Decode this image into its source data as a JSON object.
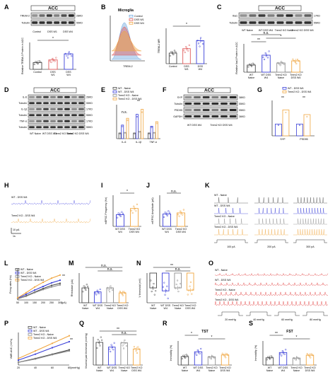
{
  "panels": [
    "A",
    "B",
    "C",
    "D",
    "E",
    "F",
    "G",
    "H",
    "I",
    "J",
    "K",
    "L",
    "M",
    "N",
    "O",
    "P",
    "Q",
    "R",
    "S"
  ],
  "text": {
    "A_region": "ACC",
    "A_blot": [
      "TREM-2",
      "Tubulin"
    ],
    "A_kda": [
      "28KD",
      "55KD"
    ],
    "A_lanes": [
      "Control",
      "DSS W1",
      "DSS W4"
    ],
    "A_ylabel": "Relative TREM-2 Protein in ACC",
    "B_title": "Microglia",
    "B_legend": [
      "Control",
      "DSS W1",
      "DSS W4"
    ],
    "B_xlabel": "TREM-2",
    "B_ylabel": "TREM-2 MFI",
    "B_groups": [
      "Control",
      "DSS W1",
      "DSS W4"
    ],
    "C_region": "ACC",
    "C_blot": [
      "Iba1",
      "Tubulin"
    ],
    "C_kda": [
      "17KD",
      "55KD"
    ],
    "C_lanes": [
      "WT Naive",
      "WT DSS W4",
      "Trem2 KO Naive",
      "Trem2 KO DSS W4"
    ],
    "C_ylabel": "Relative Iba1 Protein in ACC",
    "D_region": "ACC",
    "D_blot": [
      "IL-6",
      "Tubulin",
      "IL-1β",
      "Tubulin",
      "TNF-α",
      "Tubulin"
    ],
    "D_kda": [
      "26KD",
      "55KD",
      "17KD",
      "55KD",
      "17KD",
      "55KD"
    ],
    "E_legend": [
      "WT - Naive",
      "WT - DSS W4",
      "Trem2 KO - Naive",
      "Trem2 KO - DSS W4"
    ],
    "E_cats": [
      "IL-6",
      "IL-1β",
      "TNF-α"
    ],
    "F_region": "ACC",
    "F_blot": [
      "SYP",
      "Tubulin",
      "PSD95",
      "GAPDH"
    ],
    "F_kda": [
      "38KD",
      "55KD",
      "95KD",
      "36KD"
    ],
    "G_legend": [
      "WT - DSS W4",
      "Trem2 KO - DSS W4"
    ],
    "G_cats": [
      "SYP",
      "PSD95"
    ],
    "H_traces": [
      "WT - DSS W4",
      "Trem2 KO - DSS W4"
    ],
    "H_scale": [
      "10 pA",
      "1s"
    ],
    "I_ylabel": "mEPSC Frequency (Hz)",
    "J_ylabel": "mEPSC Amplitude (pA)",
    "IJ_groups": [
      "WT DSS W4",
      "Trem2 KO DSS W4"
    ],
    "K_rows": [
      "WT - Naive",
      "WT - DSS W4",
      "Trem2 KO - Naive",
      "Trem2 KO - DSS W4"
    ],
    "K_steps": [
      "100 pA",
      "200 pA",
      "300 pA"
    ],
    "L_legend": [
      "WT - Naive",
      "WT - DSS W4",
      "Trem2 KO - Naive",
      "Trem2 KO - DSS W4"
    ],
    "L_ylabel": "Firing rates (Hz)",
    "L_xlabel": "(pA)",
    "M_ylabel": "Rheobase (pA)",
    "N_ylabel": "V threshold (mV)",
    "O_rows": [
      "WT - Naive",
      "WT - DSS W4",
      "Trem2 KO - Naive",
      "Trem2 KO - DSS W4"
    ],
    "O_pressures": [
      "20 mmHg",
      "40 mmHg",
      "60 mmHg",
      "80 mmHg"
    ],
    "P_legend": [
      "WT - Naive",
      "WT - DSS W4",
      "Trem2 KO - Naive",
      "Trem2 KO - DSS W4"
    ],
    "P_ylabel": "VMR-AUC (mV*s)",
    "P_xlabel": "(mmHg)",
    "Q_ylabel": "Visceral pain threshold (mmHg)",
    "R_title": "TST",
    "S_title": "FST",
    "RS_ylabel": "Immobility (%)",
    "groups4": [
      "WT Naive",
      "WT DSS W4",
      "Trem2 KO Naive",
      "Trem2 KO DSS W4"
    ],
    "sig": [
      "*",
      "**",
      "n.s."
    ]
  },
  "colors": {
    "wt_naive": "#4a4a4a",
    "wt_dss": "#3a3fd8",
    "ko_naive": "#8e8e8e",
    "ko_dss": "#f0a640",
    "dss_w1": "#e05a5a",
    "control_hist": "#6fa8e0",
    "trace_blue": "#4343e0",
    "trace_orange": "#f0a640",
    "o_trace": "#e03030"
  },
  "chart_data": [
    {
      "panel": "A",
      "type": "bar",
      "categories": [
        "Control",
        "DSS W1",
        "DSS W4"
      ],
      "values": [
        1.0,
        1.4,
        2.3
      ],
      "ylim": [
        0,
        4
      ]
    },
    {
      "panel": "B",
      "type": "bar",
      "categories": [
        "Control",
        "DSS W1",
        "DSS W4"
      ],
      "values": [
        600,
        850,
        1300
      ],
      "ylim": [
        0,
        2000
      ]
    },
    {
      "panel": "C",
      "type": "bar",
      "categories": [
        "WT Naive",
        "WT DSS W4",
        "Trem2 KO Naive",
        "Trem2 KO DSS W4"
      ],
      "values": [
        1.0,
        2.4,
        1.3,
        1.6
      ],
      "ylim": [
        0,
        4
      ]
    },
    {
      "panel": "E",
      "type": "bar",
      "categories": [
        "IL-6",
        "IL-1β",
        "TNF-α"
      ],
      "series": [
        {
          "name": "WT - Naive",
          "values": [
            1.0,
            1.0,
            1.0
          ]
        },
        {
          "name": "WT - DSS W4",
          "values": [
            2.4,
            4.3,
            2.2
          ]
        },
        {
          "name": "Trem2 KO - Naive",
          "values": [
            1.1,
            1.3,
            1.1
          ]
        },
        {
          "name": "Trem2 KO - DSS W4",
          "values": [
            3.6,
            5.2,
            3.0
          ]
        }
      ],
      "ylim": [
        0,
        6
      ]
    },
    {
      "panel": "G",
      "type": "bar",
      "categories": [
        "SYP",
        "PSD95"
      ],
      "series": [
        {
          "name": "WT - DSS W4",
          "values": [
            1.0,
            1.0
          ]
        },
        {
          "name": "Trem2 KO - DSS W4",
          "values": [
            2.2,
            1.8
          ]
        }
      ],
      "ylim": [
        0,
        3
      ]
    },
    {
      "panel": "I",
      "type": "bar",
      "categories": [
        "WT DSS W4",
        "Trem2 KO DSS W4"
      ],
      "values": [
        1.5,
        2.3
      ],
      "ylim": [
        0,
        4
      ]
    },
    {
      "panel": "J",
      "type": "bar",
      "categories": [
        "WT DSS W4",
        "Trem2 KO DSS W4"
      ],
      "values": [
        12,
        13
      ],
      "ylim": [
        0,
        30
      ]
    },
    {
      "panel": "L",
      "type": "line",
      "x": [
        50,
        100,
        150,
        200,
        250,
        300
      ],
      "series": [
        {
          "name": "WT - Naive",
          "values": [
            2,
            8,
            15,
            22,
            28,
            32
          ]
        },
        {
          "name": "WT - DSS W4",
          "values": [
            3,
            11,
            19,
            26,
            33,
            38
          ]
        },
        {
          "name": "Trem2 KO - Naive",
          "values": [
            2,
            7,
            14,
            20,
            25,
            29
          ]
        },
        {
          "name": "Trem2 KO - DSS W4",
          "values": [
            4,
            14,
            25,
            34,
            42,
            48
          ]
        }
      ],
      "ylim": [
        0,
        60
      ]
    },
    {
      "panel": "M",
      "type": "bar",
      "categories": [
        "WT Naive",
        "WT DSS W4",
        "Trem2 KO Naive",
        "Trem2 KO DSS W4"
      ],
      "values": [
        150,
        110,
        150,
        100
      ],
      "ylim": [
        0,
        300
      ]
    },
    {
      "panel": "N",
      "type": "bar",
      "categories": [
        "WT Naive",
        "WT DSS W4",
        "Trem2 KO Naive",
        "Trem2 KO DSS W4"
      ],
      "values": [
        -40,
        -44,
        -40,
        -43
      ],
      "ylim": [
        -60,
        -20
      ]
    },
    {
      "panel": "P",
      "type": "line",
      "x": [
        20,
        40,
        60,
        80
      ],
      "series": [
        {
          "name": "WT - Naive",
          "values": [
            0.5,
            1.2,
            2.0,
            2.8
          ]
        },
        {
          "name": "WT - DSS W4",
          "values": [
            0.9,
            2.0,
            3.2,
            4.3
          ]
        },
        {
          "name": "Trem2 KO - Naive",
          "values": [
            0.5,
            1.1,
            1.9,
            2.6
          ]
        },
        {
          "name": "Trem2 KO - DSS W4",
          "values": [
            1.2,
            2.6,
            4.0,
            5.4
          ]
        }
      ],
      "ylim": [
        0,
        6
      ]
    },
    {
      "panel": "Q",
      "type": "bar",
      "categories": [
        "WT Naive",
        "WT DSS W4",
        "Trem2 KO Naive",
        "Trem2 KO DSS W4"
      ],
      "values": [
        48,
        38,
        47,
        34
      ],
      "ylim": [
        0,
        60
      ]
    },
    {
      "panel": "R",
      "type": "bar",
      "categories": [
        "WT Naive",
        "WT DSS W4",
        "Trem2 KO Naive",
        "Trem2 KO DSS W4"
      ],
      "values": [
        35,
        55,
        34,
        42
      ],
      "ylim": [
        0,
        100
      ]
    },
    {
      "panel": "S",
      "type": "bar",
      "categories": [
        "WT Naive",
        "WT DSS W4",
        "Trem2 KO Naive",
        "Trem2 KO DSS W4"
      ],
      "values": [
        30,
        52,
        29,
        41
      ],
      "ylim": [
        0,
        100
      ]
    }
  ]
}
